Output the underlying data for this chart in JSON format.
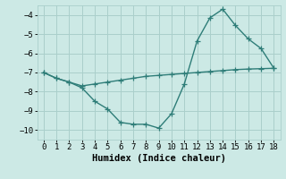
{
  "line1_x": [
    0,
    1,
    2,
    3,
    4,
    5,
    6,
    7,
    8,
    9,
    10,
    11,
    12,
    13,
    14,
    15,
    16,
    17,
    18
  ],
  "line1_y": [
    -7.0,
    -7.3,
    -7.5,
    -7.7,
    -7.6,
    -7.5,
    -7.4,
    -7.3,
    -7.2,
    -7.15,
    -7.1,
    -7.05,
    -7.0,
    -6.95,
    -6.9,
    -6.85,
    -6.82,
    -6.8,
    -6.78
  ],
  "line2_x": [
    0,
    1,
    2,
    3,
    4,
    5,
    6,
    7,
    8,
    9,
    10,
    11,
    12,
    13,
    14,
    15,
    16,
    17,
    18
  ],
  "line2_y": [
    -7.0,
    -7.3,
    -7.5,
    -7.8,
    -8.5,
    -8.9,
    -9.6,
    -9.7,
    -9.7,
    -9.9,
    -9.15,
    -7.6,
    -5.35,
    -4.15,
    -3.7,
    -4.55,
    -5.25,
    -5.75,
    -6.78
  ],
  "line_color": "#2e7d78",
  "bg_color": "#cce9e5",
  "grid_color": "#aacfcb",
  "xlabel": "Humidex (Indice chaleur)",
  "ylim": [
    -10.5,
    -3.5
  ],
  "xlim": [
    -0.5,
    18.5
  ],
  "yticks": [
    -10,
    -9,
    -8,
    -7,
    -6,
    -5,
    -4
  ],
  "xticks": [
    0,
    1,
    2,
    3,
    4,
    5,
    6,
    7,
    8,
    9,
    10,
    11,
    12,
    13,
    14,
    15,
    16,
    17,
    18
  ],
  "marker": "+",
  "marker_size": 4,
  "line_width": 1.0,
  "xlabel_fontsize": 7.5,
  "tick_fontsize": 6.5
}
